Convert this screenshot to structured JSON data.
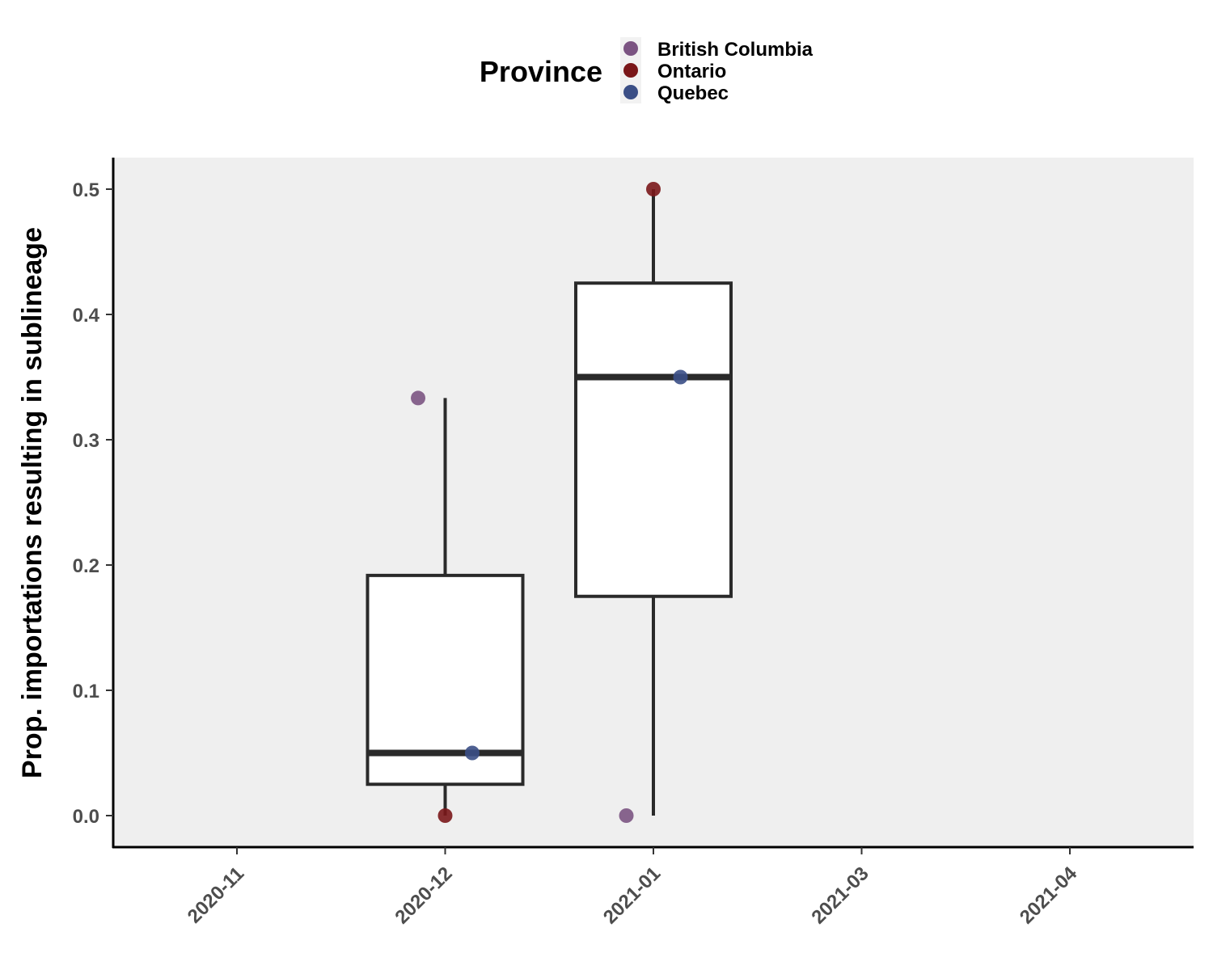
{
  "chart_data": {
    "type": "box",
    "xlabel": "",
    "ylabel": "Prop. importations resulting in sublineage",
    "ylim": [
      -0.025,
      0.525
    ],
    "yticks": [
      0.0,
      0.1,
      0.2,
      0.3,
      0.4,
      0.5
    ],
    "ytick_labels": [
      "0.0",
      "0.1",
      "0.2",
      "0.3",
      "0.4",
      "0.5"
    ],
    "categories": [
      "2020-11",
      "2020-12",
      "2021-01",
      "2021-03",
      "2021-04"
    ],
    "grid": false,
    "legend": {
      "title": "Province",
      "position": "top",
      "entries": [
        {
          "name": "British Columbia",
          "color": "#7b5482"
        },
        {
          "name": "Ontario",
          "color": "#7a1719"
        },
        {
          "name": "Quebec",
          "color": "#3b4f86"
        }
      ]
    },
    "boxes": [
      {
        "category": "2020-12",
        "min": 0.0,
        "q1": 0.025,
        "median": 0.05,
        "q3": 0.1917,
        "max": 0.3333
      },
      {
        "category": "2021-01",
        "min": 0.0,
        "q1": 0.175,
        "median": 0.35,
        "q3": 0.425,
        "max": 0.5
      }
    ],
    "points": [
      {
        "category": "2020-12",
        "province": "British Columbia",
        "value": 0.3333,
        "jitter": -0.13
      },
      {
        "category": "2020-12",
        "province": "Ontario",
        "value": 0.0,
        "jitter": 0.0
      },
      {
        "category": "2020-12",
        "province": "Quebec",
        "value": 0.05,
        "jitter": 0.13
      },
      {
        "category": "2021-01",
        "province": "British Columbia",
        "value": 0.0,
        "jitter": -0.13
      },
      {
        "category": "2021-01",
        "province": "Ontario",
        "value": 0.5,
        "jitter": 0.0
      },
      {
        "category": "2021-01",
        "province": "Quebec",
        "value": 0.35,
        "jitter": 0.13
      }
    ],
    "colors": {
      "panel_background": "#efefef",
      "box_fill": "#ffffff",
      "box_line": "#2a2a2a"
    }
  }
}
